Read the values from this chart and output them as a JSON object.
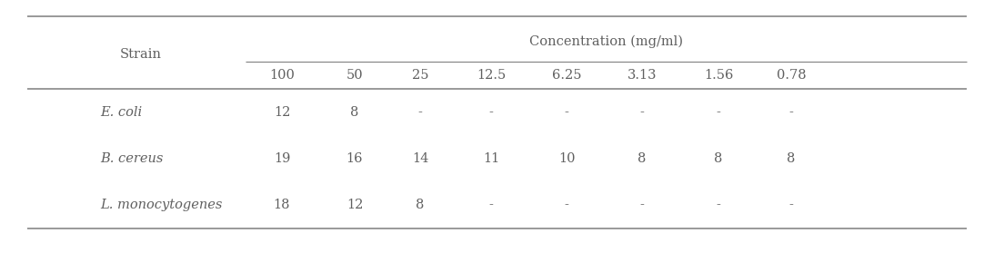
{
  "title": "Concentration (mg/ml)",
  "col_header_label": "Strain",
  "col_headers": [
    "100",
    "50",
    "25",
    "12.5",
    "6.25",
    "3.13",
    "1.56",
    "0.78"
  ],
  "rows": [
    {
      "strain": "E. coli",
      "values": [
        "12",
        "8",
        "-",
        "-",
        "-",
        "-",
        "-",
        "-"
      ]
    },
    {
      "strain": "B. cereus",
      "values": [
        "19",
        "16",
        "14",
        "11",
        "10",
        "8",
        "8",
        "8"
      ]
    },
    {
      "strain": "L. monocytogenes",
      "values": [
        "18",
        "12",
        "8",
        "-",
        "-",
        "-",
        "-",
        "-"
      ]
    }
  ],
  "text_color": "#606060",
  "line_color": "#888888",
  "font_size": 10.5,
  "figsize": [
    10.93,
    3.0
  ],
  "dpi": 100
}
